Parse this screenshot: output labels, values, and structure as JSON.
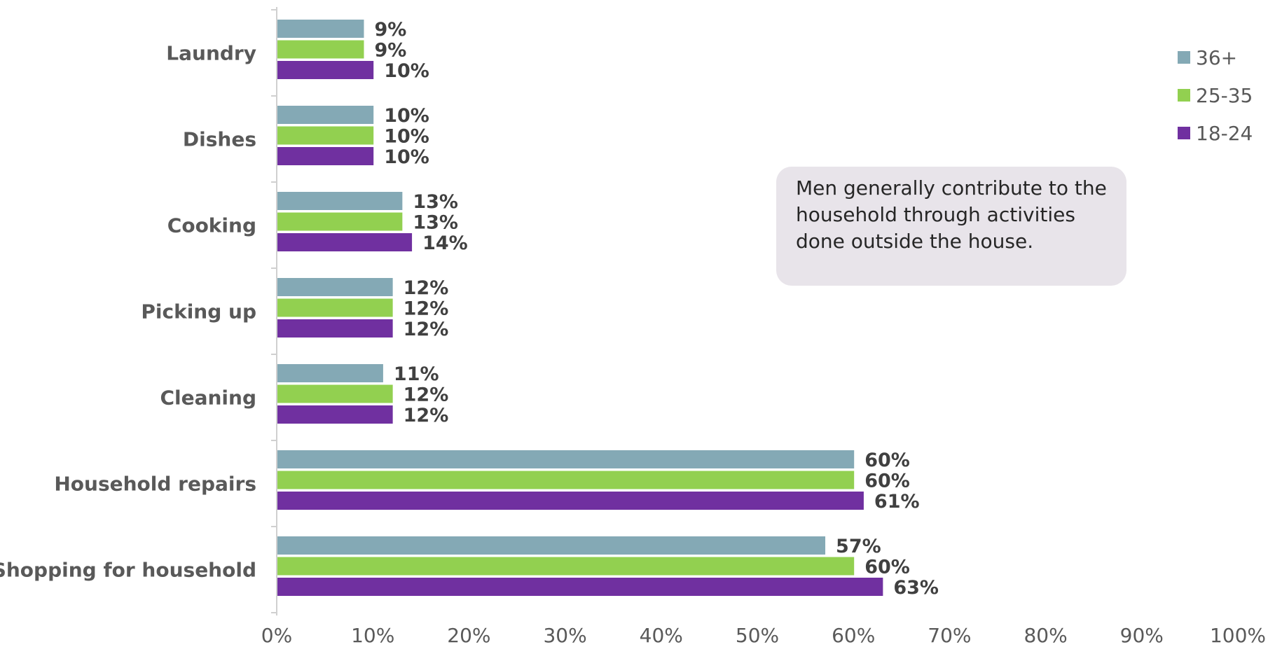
{
  "chart_data": {
    "type": "bar",
    "orientation": "horizontal",
    "categories": [
      "Laundry",
      "Dishes",
      "Cooking",
      "Picking up",
      "Cleaning",
      "Household repairs",
      "Shopping for household"
    ],
    "series": [
      {
        "name": "36+",
        "color": "#84a9b5",
        "values": [
          9,
          10,
          13,
          12,
          11,
          60,
          57
        ],
        "labels": [
          "9%",
          "10%",
          "13%",
          "12%",
          "11%",
          "60%",
          "57%"
        ]
      },
      {
        "name": "25-35",
        "color": "#92d050",
        "values": [
          9,
          10,
          13,
          12,
          12,
          60,
          60
        ],
        "labels": [
          "9%",
          "10%",
          "13%",
          "12%",
          "12%",
          "60%",
          "60%"
        ]
      },
      {
        "name": "18-24",
        "color": "#7030a0",
        "values": [
          10,
          10,
          14,
          12,
          12,
          61,
          63
        ],
        "labels": [
          "10%",
          "10%",
          "14%",
          "12%",
          "12%",
          "61%",
          "63%"
        ]
      }
    ],
    "xlim": [
      0,
      100
    ],
    "x_ticks": [
      "0%",
      "10%",
      "20%",
      "30%",
      "40%",
      "50%",
      "60%",
      "70%",
      "80%",
      "90%",
      "100%"
    ],
    "grid": false,
    "legend_position": "top-right",
    "annotation": "Men generally contribute to the household through activities done outside the house."
  }
}
